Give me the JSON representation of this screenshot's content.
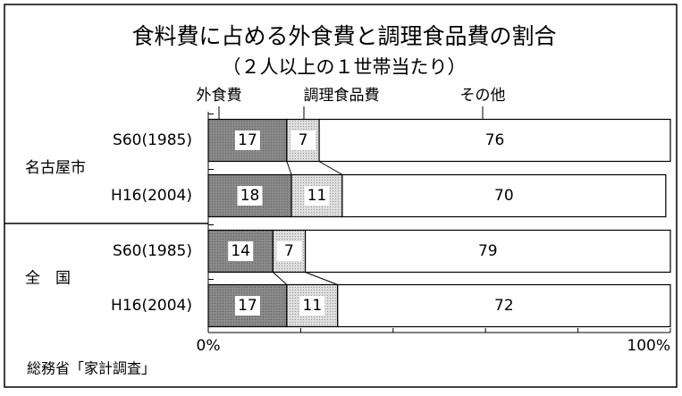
{
  "chart_data": {
    "type": "stacked-bar-horizontal",
    "title": "食料費に占める外食費と調理食品費の割合",
    "subtitle": "（２人以上の１世帯当たり）",
    "source": "総務省「家計調査」",
    "categories": [
      "S60(1985)",
      "H16(2004)",
      "S60(1985)",
      "H16(2004)"
    ],
    "groups": [
      {
        "name": "名古屋市",
        "rows": [
          0,
          1
        ]
      },
      {
        "name": "全　国",
        "rows": [
          2,
          3
        ]
      }
    ],
    "series": [
      {
        "name": "外食費",
        "color": "#8a8a8a",
        "values": [
          17,
          18,
          14,
          17
        ]
      },
      {
        "name": "調理食品費",
        "color": "#dedede",
        "values": [
          7,
          11,
          7,
          11
        ]
      },
      {
        "name": "その他",
        "color": "#ffffff",
        "values": [
          76,
          70,
          79,
          72
        ]
      }
    ],
    "xlim": [
      0,
      100
    ],
    "xticks": [
      {
        "value": 0,
        "label": "0%"
      },
      {
        "value": 100,
        "label": "100%"
      }
    ],
    "xminor_ticks": [
      20,
      40,
      60,
      80
    ]
  }
}
